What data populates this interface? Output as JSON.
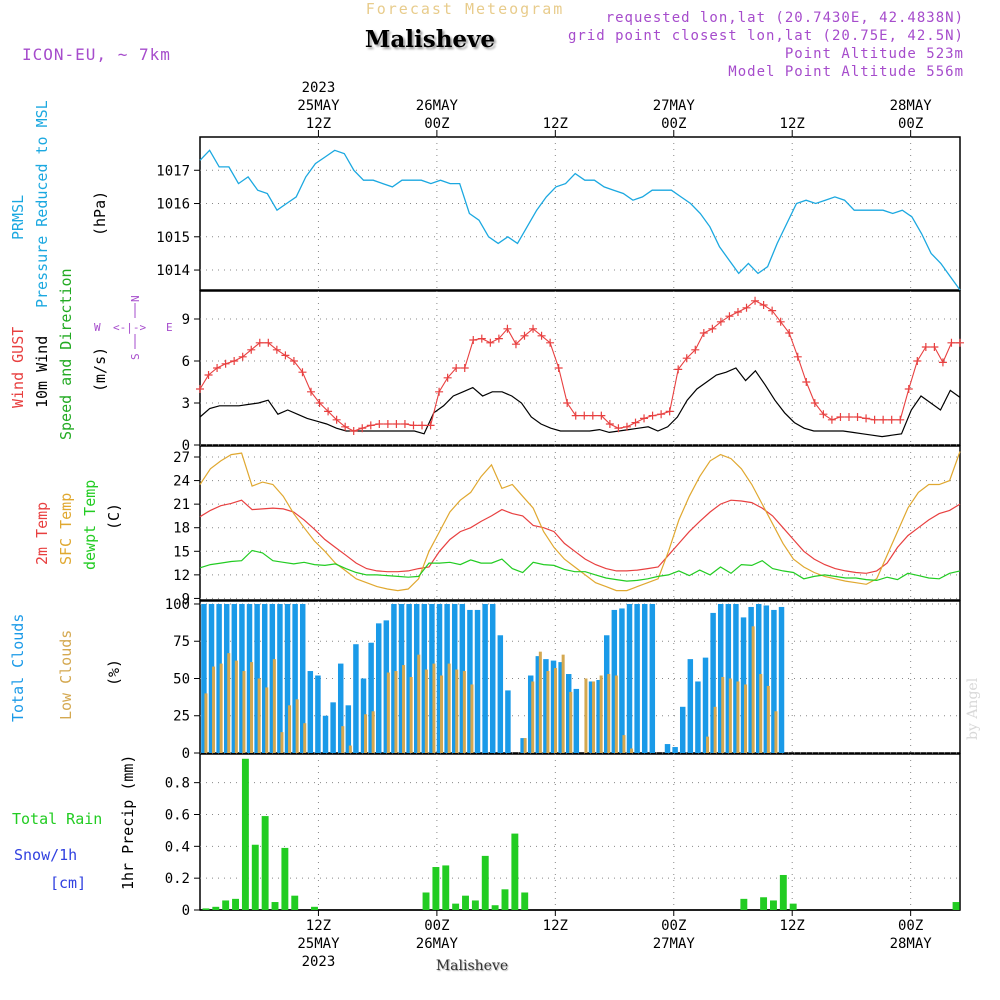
{
  "header": {
    "subtitle": "Forecast Meteogram",
    "location": "Malisheve",
    "model": "ICON-EU, ~ 7km",
    "requested": "requested lon,lat (20.7430E, 42.4838N)",
    "grid_point": "grid point closest lon,lat (20.75E, 42.5N)",
    "point_altitude": "Point Altitude 523m",
    "model_altitude": "Model Point Altitude 556m"
  },
  "footer": {
    "location": "Malisheve",
    "credit": "by Angel"
  },
  "time_axis": {
    "top": [
      {
        "t": 12,
        "lines": [
          "2023",
          "25MAY",
          "12Z"
        ]
      },
      {
        "t": 24,
        "lines": [
          "26MAY",
          "00Z"
        ]
      },
      {
        "t": 36,
        "lines": [
          "12Z"
        ]
      },
      {
        "t": 48,
        "lines": [
          "27MAY",
          "00Z"
        ]
      },
      {
        "t": 60,
        "lines": [
          "12Z"
        ]
      },
      {
        "t": 72,
        "lines": [
          "28MAY",
          "00Z"
        ]
      }
    ],
    "bottom": [
      {
        "t": 12,
        "lines": [
          "12Z",
          "25MAY",
          "2023"
        ]
      },
      {
        "t": 24,
        "lines": [
          "00Z",
          "26MAY"
        ]
      },
      {
        "t": 36,
        "lines": [
          "12Z"
        ]
      },
      {
        "t": 48,
        "lines": [
          "00Z",
          "27MAY"
        ]
      },
      {
        "t": 60,
        "lines": [
          "12Z"
        ]
      },
      {
        "t": 72,
        "lines": [
          "00Z",
          "28MAY"
        ]
      }
    ]
  },
  "panels": {
    "pressure": {
      "label1": "PRMSL",
      "label2": "Pressure Reduced to MSL",
      "unit": "(hPa)"
    },
    "wind": {
      "label1": "Wind GUST",
      "label2": "10m Wind",
      "label3": "Speed and Direction",
      "unit": "(m/s)",
      "compass": {
        "n": "N",
        "s": "S",
        "w": "W",
        "e": "E",
        "arms": "<-|->"
      }
    },
    "temp": {
      "label1": "2m Temp",
      "label2": "SFC Temp",
      "label3": "dewpt Temp",
      "unit": "(C)"
    },
    "clouds": {
      "label1": "Total Clouds",
      "label2": "Low Clouds",
      "unit": "(%)"
    },
    "precip": {
      "label1": "Total  Rain",
      "label2": "Snow/1h",
      "label3": "[cm]",
      "unit": "1hr Precip (mm)"
    }
  },
  "colors": {
    "pressure": "#1ba8e0",
    "gust": "#e84040",
    "wind": "#000000",
    "wind_label": "#22aa22",
    "t2m": "#e84040",
    "tsfc": "#e0a830",
    "dewpt": "#22cc22",
    "total_clouds": "#1a9ae8",
    "low_clouds": "#d4a850",
    "rain": "#22cc22",
    "snow": "#3040e0",
    "compass": "#a64ccc"
  },
  "chart_data": [
    {
      "type": "line",
      "panel": "pressure",
      "ylabel": "(hPa)",
      "yticks": [
        1014,
        1015,
        1016,
        1017
      ],
      "ylim": [
        1013.4,
        1018.0
      ],
      "xlim": [
        0,
        77
      ],
      "grid": true,
      "series": [
        {
          "name": "PRMSL",
          "values": [
            1017.3,
            1017.6,
            1017.1,
            1017.1,
            1016.6,
            1016.8,
            1016.4,
            1016.3,
            1015.8,
            1016.0,
            1016.2,
            1016.8,
            1017.2,
            1017.4,
            1017.6,
            1017.5,
            1017.0,
            1016.7,
            1016.7,
            1016.6,
            1016.5,
            1016.7,
            1016.7,
            1016.7,
            1016.6,
            1016.7,
            1016.6,
            1016.6,
            1015.7,
            1015.5,
            1015.0,
            1014.8,
            1015.0,
            1014.8,
            1015.3,
            1015.8,
            1016.2,
            1016.5,
            1016.6,
            1016.9,
            1016.7,
            1016.7,
            1016.5,
            1016.4,
            1016.3,
            1016.1,
            1016.2,
            1016.4,
            1016.4,
            1016.4,
            1016.2,
            1016.0,
            1015.7,
            1015.3,
            1014.7,
            1014.3,
            1013.9,
            1014.2,
            1013.9,
            1014.1,
            1014.8,
            1015.4,
            1016.0,
            1016.1,
            1016.0,
            1016.1,
            1016.2,
            1016.1,
            1015.8,
            1015.8,
            1015.8,
            1015.8,
            1015.7,
            1015.8,
            1015.6,
            1015.1,
            1014.5,
            1014.2,
            1013.8,
            1013.4
          ]
        }
      ]
    },
    {
      "type": "line",
      "panel": "wind",
      "ylabel": "(m/s)",
      "yticks": [
        0,
        3,
        6,
        9
      ],
      "ylim": [
        0,
        11
      ],
      "xlim": [
        0,
        77
      ],
      "grid": true,
      "series": [
        {
          "name": "Wind GUST",
          "values": [
            4.0,
            5.0,
            5.5,
            5.8,
            6.0,
            6.3,
            6.8,
            7.3,
            7.3,
            6.8,
            6.4,
            6.0,
            5.2,
            3.8,
            3.0,
            2.4,
            1.8,
            1.3,
            1.0,
            1.2,
            1.4,
            1.5,
            1.5,
            1.5,
            1.5,
            1.4,
            1.4,
            1.4,
            3.8,
            4.8,
            5.5,
            5.5,
            7.5,
            7.6,
            7.3,
            7.6,
            8.3,
            7.2,
            7.8,
            8.3,
            7.8,
            7.3,
            5.5,
            3.0,
            2.1,
            2.1,
            2.1,
            2.1,
            1.5,
            1.2,
            1.3,
            1.6,
            1.9,
            2.1,
            2.2,
            2.4,
            5.4,
            6.2,
            6.8,
            8.0,
            8.3,
            8.8,
            9.2,
            9.5,
            9.8,
            10.3,
            10.0,
            9.6,
            8.8,
            8.0,
            6.3,
            4.5,
            3.0,
            2.2,
            1.8,
            2.0,
            2.0,
            2.0,
            1.9,
            1.8,
            1.8,
            1.8,
            1.8,
            4.0,
            6.0,
            7.0,
            7.0,
            5.9,
            7.3,
            7.3
          ],
          "x0": 0,
          "dx": 0.86
        },
        {
          "name": "10m Wind",
          "values": [
            2.0,
            2.6,
            2.8,
            2.8,
            2.8,
            2.9,
            3.0,
            3.2,
            2.2,
            2.5,
            2.2,
            1.9,
            1.7,
            1.5,
            1.2,
            1.0,
            1.0,
            1.0,
            1.0,
            1.0,
            1.0,
            1.0,
            1.0,
            0.8,
            2.3,
            2.8,
            3.5,
            3.8,
            4.1,
            3.5,
            3.8,
            3.8,
            3.5,
            3.0,
            2.0,
            1.5,
            1.2,
            1.0,
            1.0,
            1.0,
            1.0,
            1.1,
            0.9,
            1.0,
            1.1,
            1.2,
            1.3,
            1.0,
            1.3,
            2.0,
            3.2,
            4.0,
            4.5,
            5.0,
            5.2,
            5.5,
            4.6,
            5.3,
            4.3,
            3.2,
            2.3,
            1.6,
            1.2,
            1.0,
            1.0,
            1.0,
            1.0,
            0.9,
            0.8,
            0.7,
            0.6,
            0.7,
            0.8,
            2.5,
            3.5,
            3.0,
            2.5,
            3.9,
            3.4
          ],
          "x0": 0,
          "dx": 0.974
        }
      ]
    },
    {
      "type": "line",
      "panel": "temp",
      "ylabel": "(C)",
      "yticks": [
        9,
        12,
        15,
        18,
        21,
        24,
        27
      ],
      "ylim": [
        8.8,
        28.4
      ],
      "xlim": [
        0,
        77
      ],
      "grid": true,
      "series": [
        {
          "name": "2m Temp",
          "values": [
            19.4,
            20.2,
            20.8,
            21.1,
            21.5,
            20.3,
            20.4,
            20.5,
            20.4,
            20.0,
            19.0,
            17.8,
            16.5,
            15.5,
            14.5,
            13.5,
            12.8,
            12.5,
            12.4,
            12.4,
            12.5,
            12.8,
            13.0,
            15.0,
            16.5,
            17.5,
            18.0,
            18.8,
            19.5,
            20.3,
            19.8,
            19.5,
            18.3,
            18.0,
            17.5,
            16.0,
            15.0,
            14.0,
            13.3,
            12.8,
            12.5,
            12.5,
            12.6,
            12.8,
            13.0,
            14.5,
            16.0,
            17.5,
            18.8,
            20.0,
            21.0,
            21.5,
            21.4,
            21.2,
            20.5,
            19.5,
            18.0,
            16.5,
            15.0,
            14.0,
            13.3,
            12.8,
            12.5,
            12.3,
            12.2,
            12.5,
            13.5,
            15.5,
            17.0,
            18.0,
            19.0,
            19.8,
            20.2,
            21.0
          ]
        },
        {
          "name": "SFC Temp",
          "values": [
            23.5,
            25.5,
            26.5,
            27.3,
            27.5,
            23.3,
            23.8,
            23.5,
            22.0,
            19.8,
            18.0,
            16.3,
            15.0,
            13.5,
            12.5,
            11.5,
            11.0,
            10.5,
            10.2,
            10.0,
            10.2,
            11.5,
            15.0,
            17.5,
            20.0,
            21.5,
            22.5,
            24.5,
            26.0,
            23.0,
            23.5,
            22.0,
            20.5,
            17.5,
            15.5,
            14.0,
            13.0,
            12.0,
            11.0,
            10.5,
            10.0,
            10.0,
            10.5,
            11.0,
            11.5,
            15.0,
            19.0,
            22.0,
            24.5,
            26.5,
            27.3,
            26.8,
            25.5,
            23.5,
            21.0,
            18.5,
            16.0,
            14.0,
            13.0,
            12.3,
            11.8,
            11.5,
            11.2,
            11.0,
            10.8,
            11.5,
            14.5,
            17.5,
            20.5,
            22.5,
            23.5,
            23.5,
            24.0,
            27.7
          ]
        },
        {
          "name": "dewpt Temp",
          "values": [
            12.9,
            13.3,
            13.5,
            13.7,
            13.8,
            15.1,
            14.8,
            13.8,
            13.6,
            13.4,
            13.6,
            13.3,
            13.2,
            13.4,
            12.8,
            12.3,
            12.0,
            12.0,
            11.9,
            11.8,
            11.7,
            11.8,
            13.5,
            13.5,
            13.6,
            13.3,
            13.9,
            13.5,
            13.5,
            14.0,
            12.8,
            12.3,
            13.6,
            13.3,
            13.2,
            12.7,
            12.4,
            12.4,
            12.0,
            11.6,
            11.4,
            11.2,
            11.3,
            11.5,
            11.8,
            12.0,
            12.5,
            11.9,
            12.6,
            12.0,
            13.0,
            12.2,
            13.3,
            13.2,
            13.8,
            12.8,
            12.5,
            12.3,
            11.5,
            11.8,
            12.0,
            11.8,
            11.6,
            11.6,
            11.4,
            11.3,
            11.7,
            11.4,
            12.2,
            11.9,
            11.6,
            11.5,
            12.2,
            12.5
          ]
        }
      ]
    },
    {
      "type": "bar",
      "panel": "clouds",
      "ylabel": "(%)",
      "yticks": [
        0,
        25,
        50,
        75,
        100
      ],
      "ylim": [
        0,
        102
      ],
      "xlim": [
        0,
        77
      ],
      "grid": true,
      "series": [
        {
          "name": "Total Clouds",
          "values": [
            100,
            100,
            100,
            100,
            100,
            100,
            100,
            100,
            100,
            100,
            100,
            100,
            100,
            100,
            55,
            52,
            25,
            34,
            60,
            32,
            73,
            50,
            74,
            87,
            89,
            100,
            100,
            100,
            100,
            100,
            100,
            100,
            100,
            100,
            100,
            96,
            96,
            100,
            100,
            79,
            42,
            0,
            10,
            52,
            65,
            63,
            62,
            61,
            53,
            43,
            0,
            48,
            49,
            79,
            96,
            97,
            100,
            100,
            100,
            100,
            0,
            6,
            4,
            31,
            63,
            48,
            64,
            94,
            100,
            100,
            100,
            91,
            98,
            100,
            99,
            96,
            98
          ],
          "x0": 0.12,
          "dx": 0.77
        },
        {
          "name": "Low Clouds",
          "values": [
            40,
            58,
            60,
            67,
            62,
            55,
            61,
            50,
            44,
            63,
            14,
            32,
            36,
            20,
            0,
            0,
            0,
            0,
            18,
            5,
            0,
            26,
            28,
            0,
            54,
            55,
            59,
            51,
            66,
            56,
            60,
            52,
            60,
            56,
            55,
            46,
            0,
            0,
            0,
            0,
            0,
            0,
            10,
            48,
            68,
            55,
            57,
            66,
            41,
            0,
            50,
            48,
            52,
            53,
            52,
            12,
            3,
            0,
            0,
            0,
            0,
            0,
            0,
            0,
            0,
            0,
            11,
            31,
            51,
            50,
            48,
            46,
            85,
            53,
            45,
            28
          ],
          "x0": 0.45,
          "dx": 0.77
        }
      ]
    },
    {
      "type": "bar",
      "panel": "precip",
      "ylabel": "1hr Precip (mm)",
      "yticks": [
        0,
        0.2,
        0.4,
        0.6,
        0.8
      ],
      "ylim": [
        0,
        0.98
      ],
      "xlim": [
        0,
        77
      ],
      "grid": true,
      "series": [
        {
          "name": "Total Rain",
          "values": [
            0.01,
            0.02,
            0.06,
            0.07,
            0.95,
            0.41,
            0.59,
            0.05,
            0.39,
            0.09,
            0,
            0.02,
            0,
            0,
            0,
            0,
            0,
            0,
            0,
            0,
            0,
            0,
            0.11,
            0.27,
            0.28,
            0.04,
            0.09,
            0.06,
            0.34,
            0.03,
            0.13,
            0.48,
            0.11,
            0,
            0,
            0,
            0,
            0,
            0,
            0,
            0,
            0,
            0,
            0,
            0,
            0,
            0,
            0,
            0,
            0,
            0,
            0,
            0,
            0,
            0.07,
            0,
            0.08,
            0.06,
            0.22,
            0.04,
            0,
            0,
            0,
            0,
            0,
            0,
            0,
            0,
            0,
            0,
            0,
            0,
            0,
            0,
            0,
            0,
            0.05
          ],
          "x": [
            0.6,
            1.6,
            2.6,
            3.6,
            4.6,
            5.6,
            6.6,
            7.6,
            8.6,
            9.6,
            10.6,
            11.6,
            12.6,
            13.6,
            14.6,
            15.6,
            16.6,
            17.6,
            18.6,
            19.6,
            20.6,
            21.6,
            22.9,
            23.9,
            24.9,
            25.9,
            26.9,
            27.9,
            28.9,
            29.9,
            30.9,
            31.9,
            32.9,
            33.9,
            34.9,
            35.9,
            36.9,
            37.9,
            38.9,
            39.9,
            40.9,
            41.9,
            42.9,
            43.9,
            44.9,
            45.9,
            46.9,
            47.9,
            48.9,
            49.9,
            50.9,
            51.9,
            52.9,
            53.9,
            55.1,
            56.1,
            57.1,
            58.1,
            59.1,
            60.1,
            61.1,
            62.1,
            63.1,
            64.1,
            65.1,
            66.1,
            67.1,
            68.1,
            69.1,
            70.1,
            71.1,
            72.1,
            73.1,
            74.1,
            75.1,
            76.1,
            76.6
          ]
        }
      ]
    }
  ]
}
